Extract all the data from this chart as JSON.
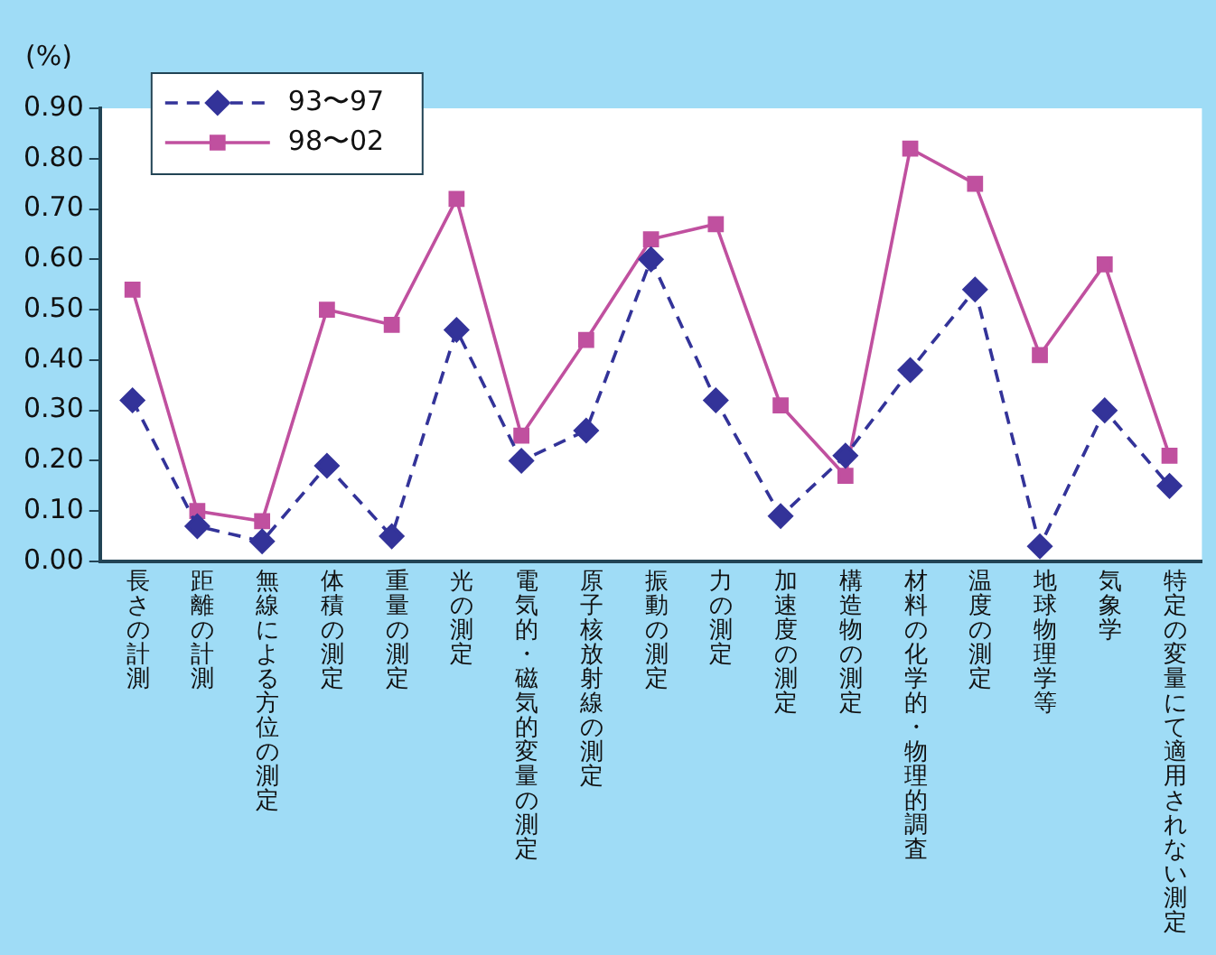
{
  "chart_data": {
    "type": "line",
    "ylabel": "(%)",
    "categories": [
      "長さの計測",
      "距離の計測",
      "無線による方位の測定",
      "体積の測定",
      "重量の測定",
      "光の測定",
      "電気的・磁気的変量の測定",
      "原子核放射線の測定",
      "振動の測定",
      "力の測定",
      "加速度の測定",
      "構造物の測定",
      "材料の化学的・物理的調査",
      "温度の測定",
      "地球物理学等",
      "気象学",
      "特定の変量にて適用されない測定"
    ],
    "series": [
      {
        "name": "93〜97",
        "color": "#333399",
        "marker": "diamond",
        "line_style": "dashed",
        "values": [
          0.32,
          0.07,
          0.04,
          0.19,
          0.05,
          0.46,
          0.2,
          0.26,
          0.6,
          0.32,
          0.09,
          0.21,
          0.38,
          0.54,
          0.03,
          0.3,
          0.15
        ]
      },
      {
        "name": "98〜02",
        "color": "#c0509f",
        "marker": "square",
        "line_style": "solid",
        "values": [
          0.54,
          0.1,
          0.08,
          0.5,
          0.47,
          0.72,
          0.25,
          0.44,
          0.64,
          0.67,
          0.31,
          0.17,
          0.82,
          0.75,
          0.41,
          0.59,
          0.21
        ]
      }
    ],
    "ylim": [
      0,
      0.9
    ],
    "yticks": [
      {
        "value": 0,
        "label": "0.00"
      },
      {
        "value": 0.1,
        "label": "0.10"
      },
      {
        "value": 0.2,
        "label": "0.20"
      },
      {
        "value": 0.3,
        "label": "0.30"
      },
      {
        "value": 0.4,
        "label": "0.40"
      },
      {
        "value": 0.5,
        "label": "0.50"
      },
      {
        "value": 0.6,
        "label": "0.60"
      },
      {
        "value": 0.7,
        "label": "0.70"
      },
      {
        "value": 0.8,
        "label": "0.80"
      },
      {
        "value": 0.9,
        "label": "0.90"
      }
    ],
    "grid": false,
    "legend": "top left"
  }
}
